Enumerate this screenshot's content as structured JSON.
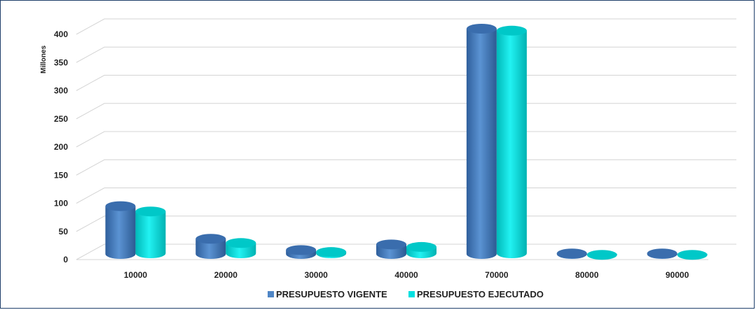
{
  "chart_data": {
    "type": "bar",
    "title": "",
    "xlabel": "",
    "ylabel": "Millones",
    "ylim": [
      0,
      400
    ],
    "yticks": [
      0,
      50,
      100,
      150,
      200,
      250,
      300,
      350,
      400
    ],
    "categories": [
      "10000",
      "20000",
      "30000",
      "40000",
      "70000",
      "80000",
      "90000"
    ],
    "series": [
      {
        "name": "PRESUPUESTO VIGENTE",
        "color": "#4f86c6",
        "values": [
          85,
          27,
          7,
          17,
          400,
          1,
          1
        ]
      },
      {
        "name": "PRESUPUESTO EJECUTADO",
        "color": "#00e0e0",
        "values": [
          78,
          22,
          6,
          15,
          399,
          1,
          1
        ]
      }
    ],
    "grid": true,
    "legend_position": "bottom"
  }
}
